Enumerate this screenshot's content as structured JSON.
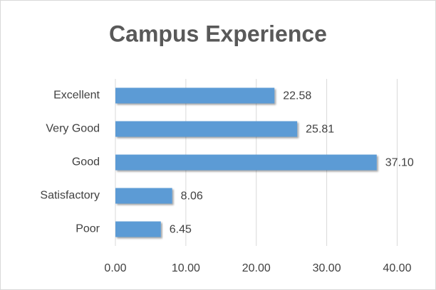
{
  "chart_data": {
    "type": "hbar",
    "title": "Campus Experience",
    "categories": [
      "Excellent",
      "Very Good",
      "Good",
      "Satisfactory",
      "Poor"
    ],
    "values": [
      22.58,
      25.81,
      37.1,
      8.06,
      6.45
    ],
    "value_labels": [
      "22.58",
      "25.81",
      "37.10",
      "8.06",
      "6.45"
    ],
    "color": "#5b9bd5",
    "xlim": [
      0,
      44
    ],
    "xticks": [
      {
        "value": 0,
        "label": "0.00"
      },
      {
        "value": 10,
        "label": "10.00"
      },
      {
        "value": 20,
        "label": "20.00"
      },
      {
        "value": 30,
        "label": "30.00"
      },
      {
        "value": 40,
        "label": "40.00"
      }
    ],
    "grid": true
  }
}
